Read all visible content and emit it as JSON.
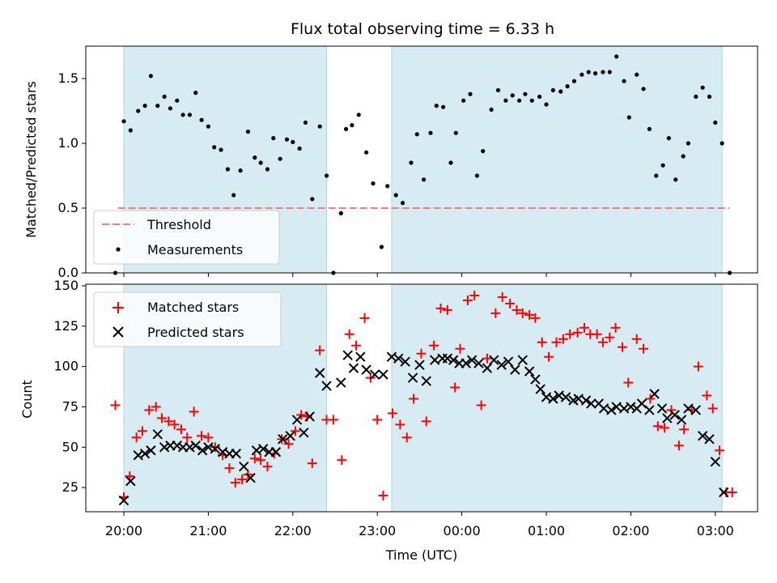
{
  "chart_data": {
    "type": "scatter",
    "title": "Flux total observing time = 6.33 h",
    "xlabel": "Time (UTC)",
    "x_ticks": [
      "20:00",
      "21:00",
      "22:00",
      "23:00",
      "00:00",
      "01:00",
      "02:00",
      "03:00"
    ],
    "x_range_hours": [
      19.55,
      27.5
    ],
    "shaded_spans_hours": [
      [
        20.0,
        22.4
      ],
      [
        23.17,
        27.08
      ]
    ],
    "shade_color": "#add8e6",
    "top": {
      "ylabel": "Matched/Predicted stars",
      "ylim": [
        0,
        1.75
      ],
      "yticks": [
        "0.0",
        "0.5",
        "1.0",
        "1.5"
      ],
      "threshold": {
        "name": "Threshold",
        "value": 0.5,
        "color": "#f08080",
        "x_range_hours": [
          19.93,
          27.17
        ]
      },
      "measurements": {
        "name": "Measurements",
        "color": "#000000",
        "points": [
          [
            19.9,
            0.0
          ],
          [
            20.0,
            1.17
          ],
          [
            20.08,
            1.1
          ],
          [
            20.17,
            1.25
          ],
          [
            20.25,
            1.29
          ],
          [
            20.32,
            1.52
          ],
          [
            20.4,
            1.29
          ],
          [
            20.48,
            1.36
          ],
          [
            20.55,
            1.27
          ],
          [
            20.63,
            1.33
          ],
          [
            20.7,
            1.22
          ],
          [
            20.78,
            1.22
          ],
          [
            20.85,
            1.39
          ],
          [
            20.92,
            1.18
          ],
          [
            21.0,
            1.13
          ],
          [
            21.07,
            0.97
          ],
          [
            21.15,
            0.95
          ],
          [
            21.23,
            0.8
          ],
          [
            21.3,
            0.6
          ],
          [
            21.38,
            0.79
          ],
          [
            21.47,
            1.09
          ],
          [
            21.55,
            0.89
          ],
          [
            21.62,
            0.85
          ],
          [
            21.7,
            0.8
          ],
          [
            21.77,
            1.04
          ],
          [
            21.85,
            0.88
          ],
          [
            21.93,
            1.03
          ],
          [
            22.0,
            1.01
          ],
          [
            22.08,
            0.96
          ],
          [
            22.15,
            1.16
          ],
          [
            22.23,
            0.57
          ],
          [
            22.32,
            1.13
          ],
          [
            22.4,
            0.75
          ],
          [
            22.48,
            0.0
          ],
          [
            22.57,
            0.46
          ],
          [
            22.63,
            1.11
          ],
          [
            22.7,
            1.14
          ],
          [
            22.78,
            1.22
          ],
          [
            22.87,
            0.93
          ],
          [
            22.95,
            0.69
          ],
          [
            23.05,
            0.2
          ],
          [
            23.12,
            0.67
          ],
          [
            23.22,
            0.6
          ],
          [
            23.3,
            0.54
          ],
          [
            23.4,
            0.85
          ],
          [
            23.47,
            1.07
          ],
          [
            23.55,
            0.72
          ],
          [
            23.63,
            1.08
          ],
          [
            23.7,
            1.29
          ],
          [
            23.78,
            1.28
          ],
          [
            23.87,
            0.85
          ],
          [
            23.93,
            1.08
          ],
          [
            24.02,
            1.33
          ],
          [
            24.1,
            1.38
          ],
          [
            24.18,
            0.75
          ],
          [
            24.25,
            0.94
          ],
          [
            24.35,
            1.26
          ],
          [
            24.43,
            1.41
          ],
          [
            24.52,
            1.33
          ],
          [
            24.6,
            1.37
          ],
          [
            24.68,
            1.33
          ],
          [
            24.75,
            1.38
          ],
          [
            24.83,
            1.33
          ],
          [
            24.92,
            1.36
          ],
          [
            25.0,
            1.3
          ],
          [
            25.08,
            1.41
          ],
          [
            25.17,
            1.4
          ],
          [
            25.25,
            1.44
          ],
          [
            25.33,
            1.48
          ],
          [
            25.42,
            1.53
          ],
          [
            25.5,
            1.55
          ],
          [
            25.58,
            1.54
          ],
          [
            25.67,
            1.55
          ],
          [
            25.75,
            1.55
          ],
          [
            25.83,
            1.67
          ],
          [
            25.92,
            1.48
          ],
          [
            25.98,
            1.2
          ],
          [
            26.07,
            1.53
          ],
          [
            26.15,
            1.42
          ],
          [
            26.22,
            1.11
          ],
          [
            26.3,
            0.75
          ],
          [
            26.38,
            0.83
          ],
          [
            26.45,
            1.04
          ],
          [
            26.53,
            0.72
          ],
          [
            26.62,
            0.9
          ],
          [
            26.68,
            1.0
          ],
          [
            26.77,
            1.36
          ],
          [
            26.85,
            1.43
          ],
          [
            26.93,
            1.36
          ],
          [
            27.0,
            1.16
          ],
          [
            27.08,
            1.0
          ],
          [
            27.17,
            0.0
          ]
        ]
      }
    },
    "bottom": {
      "ylabel": "Count",
      "ylim": [
        10,
        151
      ],
      "yticks": [
        "25",
        "50",
        "75",
        "100",
        "125",
        "150"
      ],
      "series": [
        {
          "name": "Matched stars",
          "marker": "+",
          "color": "#ff0000",
          "points": [
            [
              19.9,
              76
            ],
            [
              20.0,
              19
            ],
            [
              20.07,
              32
            ],
            [
              20.15,
              56
            ],
            [
              20.22,
              60
            ],
            [
              20.3,
              73
            ],
            [
              20.38,
              75
            ],
            [
              20.45,
              68
            ],
            [
              20.53,
              66
            ],
            [
              20.6,
              64
            ],
            [
              20.68,
              61
            ],
            [
              20.75,
              56
            ],
            [
              20.83,
              72
            ],
            [
              20.92,
              57
            ],
            [
              21.0,
              56
            ],
            [
              21.08,
              50
            ],
            [
              21.17,
              45
            ],
            [
              21.25,
              37
            ],
            [
              21.32,
              28
            ],
            [
              21.4,
              30
            ],
            [
              21.47,
              33
            ],
            [
              21.55,
              43
            ],
            [
              21.62,
              42
            ],
            [
              21.7,
              38
            ],
            [
              21.78,
              46
            ],
            [
              21.87,
              55
            ],
            [
              21.95,
              52
            ],
            [
              22.03,
              60
            ],
            [
              22.1,
              70
            ],
            [
              22.17,
              69
            ],
            [
              22.23,
              40
            ],
            [
              22.32,
              110
            ],
            [
              22.4,
              67
            ],
            [
              22.48,
              67
            ],
            [
              22.58,
              42
            ],
            [
              22.67,
              120
            ],
            [
              22.75,
              113
            ],
            [
              22.85,
              130
            ],
            [
              22.92,
              93
            ],
            [
              23.0,
              67
            ],
            [
              23.07,
              20
            ],
            [
              23.18,
              71
            ],
            [
              23.27,
              64
            ],
            [
              23.35,
              56
            ],
            [
              23.43,
              80
            ],
            [
              23.52,
              108
            ],
            [
              23.58,
              66
            ],
            [
              23.67,
              113
            ],
            [
              23.75,
              136
            ],
            [
              23.83,
              135
            ],
            [
              23.92,
              87
            ],
            [
              23.98,
              111
            ],
            [
              24.07,
              141
            ],
            [
              24.15,
              144
            ],
            [
              24.23,
              76
            ],
            [
              24.3,
              105
            ],
            [
              24.4,
              133
            ],
            [
              24.48,
              143
            ],
            [
              24.57,
              139
            ],
            [
              24.65,
              135
            ],
            [
              24.72,
              133
            ],
            [
              24.8,
              132
            ],
            [
              24.87,
              130
            ],
            [
              24.95,
              115
            ],
            [
              25.03,
              106
            ],
            [
              25.12,
              115
            ],
            [
              25.2,
              117
            ],
            [
              25.28,
              120
            ],
            [
              25.37,
              121
            ],
            [
              25.45,
              124
            ],
            [
              25.52,
              120
            ],
            [
              25.6,
              120
            ],
            [
              25.67,
              115
            ],
            [
              25.75,
              118
            ],
            [
              25.82,
              124
            ],
            [
              25.9,
              112
            ],
            [
              25.97,
              90
            ],
            [
              26.07,
              117
            ],
            [
              26.15,
              111
            ],
            [
              26.23,
              80
            ],
            [
              26.32,
              63
            ],
            [
              26.4,
              62
            ],
            [
              26.48,
              73
            ],
            [
              26.57,
              51
            ],
            [
              26.63,
              61
            ],
            [
              26.72,
              73
            ],
            [
              26.8,
              100
            ],
            [
              26.9,
              82
            ],
            [
              26.97,
              74
            ],
            [
              27.05,
              48
            ],
            [
              27.13,
              22
            ],
            [
              27.2,
              22
            ]
          ]
        },
        {
          "name": "Predicted stars",
          "marker": "x",
          "color": "#000000",
          "points": [
            [
              20.0,
              17
            ],
            [
              20.08,
              29
            ],
            [
              20.17,
              45
            ],
            [
              20.25,
              46
            ],
            [
              20.32,
              48
            ],
            [
              20.4,
              58
            ],
            [
              20.48,
              50
            ],
            [
              20.55,
              51
            ],
            [
              20.63,
              51
            ],
            [
              20.7,
              50
            ],
            [
              20.78,
              50
            ],
            [
              20.85,
              51
            ],
            [
              20.93,
              48
            ],
            [
              21.0,
              50
            ],
            [
              21.08,
              49
            ],
            [
              21.17,
              47
            ],
            [
              21.25,
              46
            ],
            [
              21.33,
              46
            ],
            [
              21.42,
              38
            ],
            [
              21.5,
              31
            ],
            [
              21.57,
              48
            ],
            [
              21.65,
              49
            ],
            [
              21.72,
              47
            ],
            [
              21.8,
              47
            ],
            [
              21.88,
              55
            ],
            [
              21.97,
              57
            ],
            [
              22.05,
              67
            ],
            [
              22.13,
              59
            ],
            [
              22.2,
              69
            ],
            [
              22.32,
              96
            ],
            [
              22.4,
              88
            ],
            [
              22.57,
              90
            ],
            [
              22.65,
              107
            ],
            [
              22.72,
              99
            ],
            [
              22.8,
              106
            ],
            [
              22.87,
              98
            ],
            [
              22.97,
              95
            ],
            [
              23.07,
              95
            ],
            [
              23.17,
              106
            ],
            [
              23.25,
              105
            ],
            [
              23.33,
              103
            ],
            [
              23.42,
              93
            ],
            [
              23.5,
              101
            ],
            [
              23.58,
              91
            ],
            [
              23.68,
              104
            ],
            [
              23.77,
              105
            ],
            [
              23.83,
              105
            ],
            [
              23.9,
              104
            ],
            [
              23.97,
              102
            ],
            [
              24.05,
              102
            ],
            [
              24.12,
              104
            ],
            [
              24.2,
              102
            ],
            [
              24.3,
              99
            ],
            [
              24.38,
              104
            ],
            [
              24.47,
              101
            ],
            [
              24.55,
              103
            ],
            [
              24.63,
              98
            ],
            [
              24.72,
              104
            ],
            [
              24.8,
              97
            ],
            [
              24.87,
              92
            ],
            [
              24.93,
              86
            ],
            [
              25.0,
              81
            ],
            [
              25.08,
              80
            ],
            [
              25.15,
              82
            ],
            [
              25.23,
              81
            ],
            [
              25.32,
              79
            ],
            [
              25.38,
              80
            ],
            [
              25.47,
              79
            ],
            [
              25.53,
              77
            ],
            [
              25.62,
              77
            ],
            [
              25.68,
              74
            ],
            [
              25.77,
              73
            ],
            [
              25.83,
              75
            ],
            [
              25.92,
              74
            ],
            [
              26.0,
              75
            ],
            [
              26.07,
              74
            ],
            [
              26.13,
              77
            ],
            [
              26.22,
              73
            ],
            [
              26.28,
              83
            ],
            [
              26.37,
              74
            ],
            [
              26.43,
              68
            ],
            [
              26.52,
              70
            ],
            [
              26.6,
              67
            ],
            [
              26.68,
              74
            ],
            [
              26.77,
              73
            ],
            [
              26.85,
              57
            ],
            [
              26.93,
              55
            ],
            [
              27.0,
              41
            ],
            [
              27.1,
              22
            ]
          ]
        }
      ]
    }
  }
}
